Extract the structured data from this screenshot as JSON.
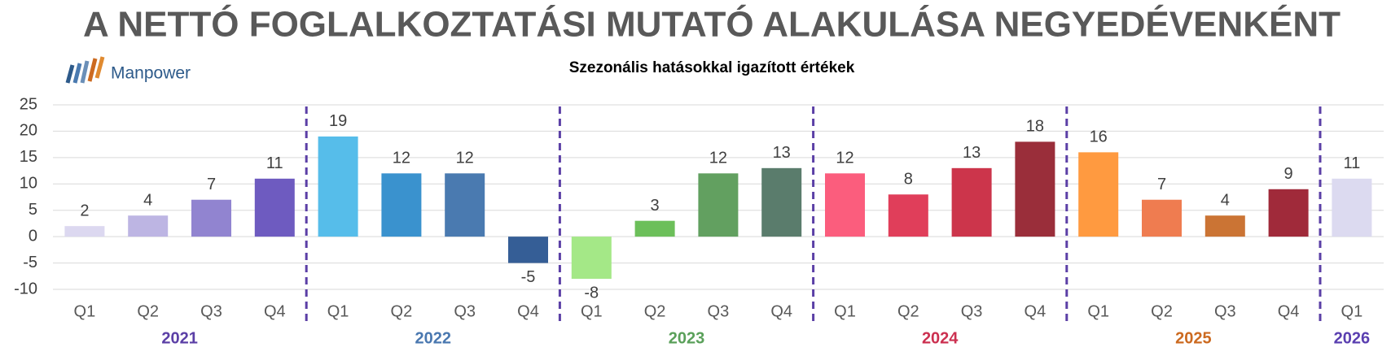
{
  "chart_data": {
    "type": "bar",
    "title": "A NETTÓ FOGLALKOZTATÁSI MUTATÓ ALAKULÁSA NEGYEDÉVENKÉNT",
    "subtitle": "Szezonális hatásokkal igazított értékek",
    "logo": "Manpower",
    "ylim": [
      -10,
      25
    ],
    "yticks": [
      -10,
      -5,
      0,
      5,
      10,
      15,
      20,
      25
    ],
    "grid": true,
    "groups": [
      {
        "name": "2021",
        "color": "#5b3fa6",
        "categories": [
          "Q1",
          "Q2",
          "Q3",
          "Q4"
        ],
        "values": [
          2,
          4,
          7,
          11
        ],
        "colors": [
          "#dcd8f0",
          "#bdb5e3",
          "#9184d0",
          "#6e5bc0"
        ]
      },
      {
        "name": "2022",
        "color": "#4a78b0",
        "categories": [
          "Q1",
          "Q2",
          "Q3",
          "Q4"
        ],
        "values": [
          19,
          12,
          12,
          -5
        ],
        "colors": [
          "#56bdea",
          "#3a92ce",
          "#4a7ab0",
          "#355e96"
        ]
      },
      {
        "name": "2023",
        "color": "#5aa05a",
        "categories": [
          "Q1",
          "Q2",
          "Q3",
          "Q4"
        ],
        "values": [
          -8,
          3,
          12,
          13
        ],
        "colors": [
          "#a4e887",
          "#6cbf5a",
          "#62a060",
          "#5a7c6c"
        ]
      },
      {
        "name": "2024",
        "color": "#cc3050",
        "categories": [
          "Q1",
          "Q2",
          "Q3",
          "Q4"
        ],
        "values": [
          12,
          8,
          13,
          18
        ],
        "colors": [
          "#fb5d7d",
          "#e03e5a",
          "#cc354b",
          "#9a2e3a"
        ]
      },
      {
        "name": "2025",
        "color": "#cc6a20",
        "categories": [
          "Q1",
          "Q2",
          "Q3",
          "Q4"
        ],
        "values": [
          16,
          7,
          4,
          9
        ],
        "colors": [
          "#ff9a40",
          "#ef7c50",
          "#cb7434",
          "#a02a3a"
        ]
      },
      {
        "name": "2026",
        "color": "#5a3fb0",
        "categories": [
          "Q1"
        ],
        "values": [
          11
        ],
        "colors": [
          "#dcdaf0"
        ]
      }
    ]
  }
}
